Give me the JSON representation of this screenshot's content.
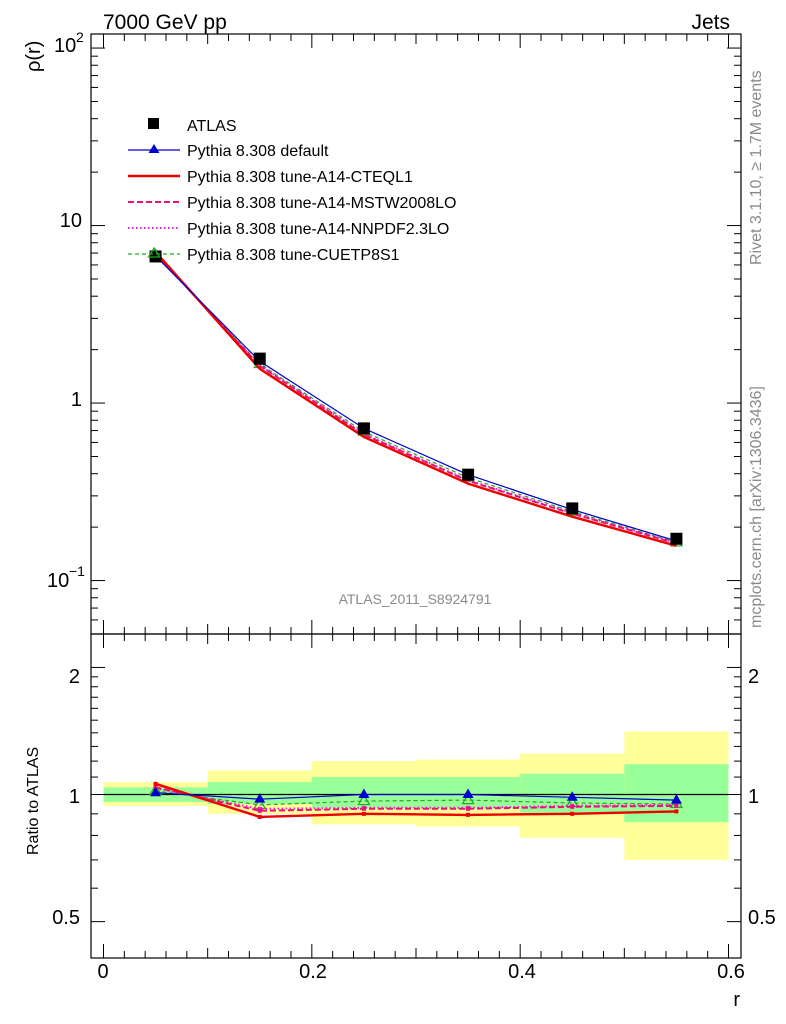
{
  "header": {
    "left": "7000 GeV pp",
    "right": "Jets"
  },
  "side_labels": {
    "rivet": "Rivet 3.1.10, ≥ 1.7M events",
    "mcplots": "mcplots.cern.ch [arXiv:1306.3436]"
  },
  "watermark": "ATLAS_2011_S8924791",
  "legend": [
    {
      "label": "ATLAS",
      "color": "#000000",
      "style": "marker-square"
    },
    {
      "label": "Pythia 8.308 default",
      "color": "#0000cc",
      "style": "line-triangle"
    },
    {
      "label": "Pythia 8.308 tune-A14-CTEQL1",
      "color": "#ee0000",
      "style": "line-thick"
    },
    {
      "label": "Pythia 8.308 tune-A14-MSTW2008LO",
      "color": "#ee1177",
      "style": "dashed"
    },
    {
      "label": "Pythia 8.308 tune-A14-NNPDF2.3LO",
      "color": "#ee22cc",
      "style": "dotted"
    },
    {
      "label": "Pythia 8.308 tune-CUETP8S1",
      "color": "#22aa22",
      "style": "dashed-triangle-open"
    }
  ],
  "chart_data": [
    {
      "type": "line",
      "panel": "main",
      "ylabel": "ρ(r)",
      "yscale": "log",
      "ylim": [
        0.05,
        120
      ],
      "xlim": [
        -0.012,
        0.612
      ],
      "ytick_labels": [
        "10",
        "1"
      ],
      "ytick_special": {
        "top_base": "10",
        "top_exp": "2",
        "bottom_base": "10",
        "bottom_exp": "−1"
      },
      "x": [
        0.05,
        0.15,
        0.25,
        0.35,
        0.45,
        0.55
      ],
      "series": [
        {
          "name": "ATLAS",
          "values": [
            6.7,
            1.78,
            0.72,
            0.395,
            0.255,
            0.172
          ]
        },
        {
          "name": "Pythia 8.308 default",
          "values": [
            6.75,
            1.72,
            0.72,
            0.395,
            0.251,
            0.167
          ]
        },
        {
          "name": "Pythia 8.308 tune-A14-CTEQL1",
          "values": [
            7.1,
            1.56,
            0.645,
            0.352,
            0.229,
            0.157
          ]
        },
        {
          "name": "Pythia 8.308 tune-A14-MSTW2008LO",
          "values": [
            6.95,
            1.62,
            0.665,
            0.365,
            0.238,
            0.162
          ]
        },
        {
          "name": "Pythia 8.308 tune-A14-NNPDF2.3LO",
          "values": [
            6.9,
            1.63,
            0.67,
            0.368,
            0.24,
            0.163
          ]
        },
        {
          "name": "Pythia 8.308 tune-CUETP8S1",
          "values": [
            6.8,
            1.66,
            0.69,
            0.38,
            0.245,
            0.164
          ]
        }
      ]
    },
    {
      "type": "line",
      "panel": "ratio",
      "ylabel": "Ratio to ATLAS",
      "xlabel": "r",
      "yscale": "log",
      "ylim": [
        0.41,
        2.4
      ],
      "xlim": [
        -0.012,
        0.612
      ],
      "ytick_labels": [
        "2",
        "1",
        "0.5"
      ],
      "xtick_labels": [
        "0",
        "0.2",
        "0.4",
        "0.6"
      ],
      "x_edges": [
        0.0,
        0.1,
        0.2,
        0.3,
        0.4,
        0.5,
        0.6
      ],
      "band_stat": [
        [
          0.96,
          1.04
        ],
        [
          0.95,
          1.07
        ],
        [
          0.93,
          1.1
        ],
        [
          0.93,
          1.1
        ],
        [
          0.9,
          1.12
        ],
        [
          0.86,
          1.18
        ]
      ],
      "band_total": [
        [
          0.94,
          1.07
        ],
        [
          0.9,
          1.14
        ],
        [
          0.85,
          1.2
        ],
        [
          0.84,
          1.21
        ],
        [
          0.79,
          1.25
        ],
        [
          0.7,
          1.41
        ]
      ],
      "x": [
        0.05,
        0.15,
        0.25,
        0.35,
        0.45,
        0.55
      ],
      "series": [
        {
          "name": "Pythia 8.308 default",
          "values": [
            1.01,
            0.975,
            1.0,
            1.0,
            0.985,
            0.97
          ]
        },
        {
          "name": "Pythia 8.308 tune-A14-CTEQL1",
          "values": [
            1.06,
            0.885,
            0.9,
            0.895,
            0.9,
            0.912
          ]
        },
        {
          "name": "Pythia 8.308 tune-A14-MSTW2008LO",
          "values": [
            1.04,
            0.915,
            0.925,
            0.925,
            0.935,
            0.94
          ]
        },
        {
          "name": "Pythia 8.308 tune-A14-NNPDF2.3LO",
          "values": [
            1.035,
            0.925,
            0.93,
            0.93,
            0.94,
            0.945
          ]
        },
        {
          "name": "Pythia 8.308 tune-CUETP8S1",
          "values": [
            1.02,
            0.945,
            0.965,
            0.97,
            0.955,
            0.95
          ]
        }
      ]
    }
  ],
  "colors": {
    "band_stat": "#99ff99",
    "band_total": "#ffff99",
    "atlas": "#000000",
    "default": "#0000cc",
    "cteql1": "#ee0000",
    "mstw": "#ee1177",
    "nnpdf": "#ee22cc",
    "cuetp8s1": "#22aa22"
  }
}
